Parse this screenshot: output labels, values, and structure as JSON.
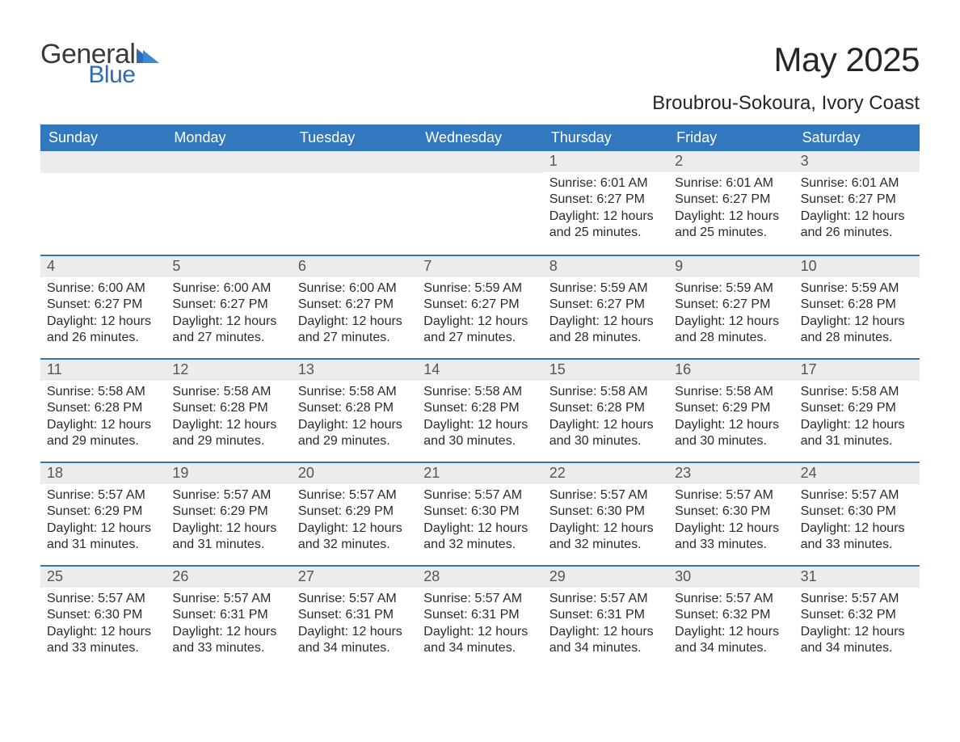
{
  "brand": {
    "word1": "General",
    "word2": "Blue"
  },
  "title": "May 2025",
  "subtitle": "Broubrou-Sokoura, Ivory Coast",
  "colors": {
    "header_bg": "#3178bf",
    "header_text": "#ffffff",
    "daynum_bg": "#ececec",
    "daynum_text": "#555555",
    "body_text": "#2b2b2b",
    "page_bg": "#ffffff",
    "row_border": "#3178bf",
    "brand_blue": "#2a6db5",
    "brand_gray": "#3a3a3a"
  },
  "fonts": {
    "title_size_pt": 32,
    "subtitle_size_pt": 18,
    "day_header_size_pt": 14,
    "daynum_size_pt": 14,
    "body_size_pt": 12
  },
  "day_headers": [
    "Sunday",
    "Monday",
    "Tuesday",
    "Wednesday",
    "Thursday",
    "Friday",
    "Saturday"
  ],
  "weeks": [
    {
      "cells": [
        {
          "empty": true
        },
        {
          "empty": true
        },
        {
          "empty": true
        },
        {
          "empty": true
        },
        {
          "day": "1",
          "sunrise": "Sunrise: 6:01 AM",
          "sunset": "Sunset: 6:27 PM",
          "daylight": "Daylight: 12 hours and 25 minutes."
        },
        {
          "day": "2",
          "sunrise": "Sunrise: 6:01 AM",
          "sunset": "Sunset: 6:27 PM",
          "daylight": "Daylight: 12 hours and 25 minutes."
        },
        {
          "day": "3",
          "sunrise": "Sunrise: 6:01 AM",
          "sunset": "Sunset: 6:27 PM",
          "daylight": "Daylight: 12 hours and 26 minutes."
        }
      ]
    },
    {
      "cells": [
        {
          "day": "4",
          "sunrise": "Sunrise: 6:00 AM",
          "sunset": "Sunset: 6:27 PM",
          "daylight": "Daylight: 12 hours and 26 minutes."
        },
        {
          "day": "5",
          "sunrise": "Sunrise: 6:00 AM",
          "sunset": "Sunset: 6:27 PM",
          "daylight": "Daylight: 12 hours and 27 minutes."
        },
        {
          "day": "6",
          "sunrise": "Sunrise: 6:00 AM",
          "sunset": "Sunset: 6:27 PM",
          "daylight": "Daylight: 12 hours and 27 minutes."
        },
        {
          "day": "7",
          "sunrise": "Sunrise: 5:59 AM",
          "sunset": "Sunset: 6:27 PM",
          "daylight": "Daylight: 12 hours and 27 minutes."
        },
        {
          "day": "8",
          "sunrise": "Sunrise: 5:59 AM",
          "sunset": "Sunset: 6:27 PM",
          "daylight": "Daylight: 12 hours and 28 minutes."
        },
        {
          "day": "9",
          "sunrise": "Sunrise: 5:59 AM",
          "sunset": "Sunset: 6:27 PM",
          "daylight": "Daylight: 12 hours and 28 minutes."
        },
        {
          "day": "10",
          "sunrise": "Sunrise: 5:59 AM",
          "sunset": "Sunset: 6:28 PM",
          "daylight": "Daylight: 12 hours and 28 minutes."
        }
      ]
    },
    {
      "cells": [
        {
          "day": "11",
          "sunrise": "Sunrise: 5:58 AM",
          "sunset": "Sunset: 6:28 PM",
          "daylight": "Daylight: 12 hours and 29 minutes."
        },
        {
          "day": "12",
          "sunrise": "Sunrise: 5:58 AM",
          "sunset": "Sunset: 6:28 PM",
          "daylight": "Daylight: 12 hours and 29 minutes."
        },
        {
          "day": "13",
          "sunrise": "Sunrise: 5:58 AM",
          "sunset": "Sunset: 6:28 PM",
          "daylight": "Daylight: 12 hours and 29 minutes."
        },
        {
          "day": "14",
          "sunrise": "Sunrise: 5:58 AM",
          "sunset": "Sunset: 6:28 PM",
          "daylight": "Daylight: 12 hours and 30 minutes."
        },
        {
          "day": "15",
          "sunrise": "Sunrise: 5:58 AM",
          "sunset": "Sunset: 6:28 PM",
          "daylight": "Daylight: 12 hours and 30 minutes."
        },
        {
          "day": "16",
          "sunrise": "Sunrise: 5:58 AM",
          "sunset": "Sunset: 6:29 PM",
          "daylight": "Daylight: 12 hours and 30 minutes."
        },
        {
          "day": "17",
          "sunrise": "Sunrise: 5:58 AM",
          "sunset": "Sunset: 6:29 PM",
          "daylight": "Daylight: 12 hours and 31 minutes."
        }
      ]
    },
    {
      "cells": [
        {
          "day": "18",
          "sunrise": "Sunrise: 5:57 AM",
          "sunset": "Sunset: 6:29 PM",
          "daylight": "Daylight: 12 hours and 31 minutes."
        },
        {
          "day": "19",
          "sunrise": "Sunrise: 5:57 AM",
          "sunset": "Sunset: 6:29 PM",
          "daylight": "Daylight: 12 hours and 31 minutes."
        },
        {
          "day": "20",
          "sunrise": "Sunrise: 5:57 AM",
          "sunset": "Sunset: 6:29 PM",
          "daylight": "Daylight: 12 hours and 32 minutes."
        },
        {
          "day": "21",
          "sunrise": "Sunrise: 5:57 AM",
          "sunset": "Sunset: 6:30 PM",
          "daylight": "Daylight: 12 hours and 32 minutes."
        },
        {
          "day": "22",
          "sunrise": "Sunrise: 5:57 AM",
          "sunset": "Sunset: 6:30 PM",
          "daylight": "Daylight: 12 hours and 32 minutes."
        },
        {
          "day": "23",
          "sunrise": "Sunrise: 5:57 AM",
          "sunset": "Sunset: 6:30 PM",
          "daylight": "Daylight: 12 hours and 33 minutes."
        },
        {
          "day": "24",
          "sunrise": "Sunrise: 5:57 AM",
          "sunset": "Sunset: 6:30 PM",
          "daylight": "Daylight: 12 hours and 33 minutes."
        }
      ]
    },
    {
      "cells": [
        {
          "day": "25",
          "sunrise": "Sunrise: 5:57 AM",
          "sunset": "Sunset: 6:30 PM",
          "daylight": "Daylight: 12 hours and 33 minutes."
        },
        {
          "day": "26",
          "sunrise": "Sunrise: 5:57 AM",
          "sunset": "Sunset: 6:31 PM",
          "daylight": "Daylight: 12 hours and 33 minutes."
        },
        {
          "day": "27",
          "sunrise": "Sunrise: 5:57 AM",
          "sunset": "Sunset: 6:31 PM",
          "daylight": "Daylight: 12 hours and 34 minutes."
        },
        {
          "day": "28",
          "sunrise": "Sunrise: 5:57 AM",
          "sunset": "Sunset: 6:31 PM",
          "daylight": "Daylight: 12 hours and 34 minutes."
        },
        {
          "day": "29",
          "sunrise": "Sunrise: 5:57 AM",
          "sunset": "Sunset: 6:31 PM",
          "daylight": "Daylight: 12 hours and 34 minutes."
        },
        {
          "day": "30",
          "sunrise": "Sunrise: 5:57 AM",
          "sunset": "Sunset: 6:32 PM",
          "daylight": "Daylight: 12 hours and 34 minutes."
        },
        {
          "day": "31",
          "sunrise": "Sunrise: 5:57 AM",
          "sunset": "Sunset: 6:32 PM",
          "daylight": "Daylight: 12 hours and 34 minutes."
        }
      ]
    }
  ]
}
